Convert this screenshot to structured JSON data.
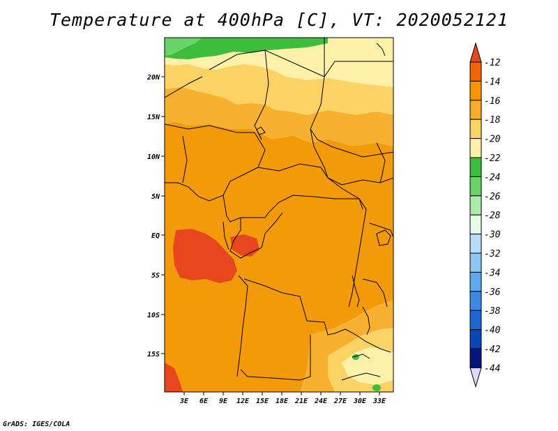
{
  "title": "Temperature at 400hPa [C], VT: 2020052121",
  "footer": "GrADS: IGES/COLA",
  "map": {
    "lat_labels": [
      "20N",
      "15N",
      "10N",
      "5N",
      "EQ",
      "5S",
      "10S",
      "15S"
    ],
    "lon_labels": [
      "3E",
      "6E",
      "9E",
      "12E",
      "15E",
      "18E",
      "21E",
      "24E",
      "27E",
      "30E",
      "33E"
    ]
  },
  "colorbar": {
    "levels": [
      "-12",
      "-14",
      "-16",
      "-18",
      "-20",
      "-22",
      "-24",
      "-26",
      "-28",
      "-30",
      "-32",
      "-34",
      "-36",
      "-38",
      "-40",
      "-42",
      "-44"
    ],
    "colors": [
      "#e8461e",
      "#f26400",
      "#f79400",
      "#f9aa28",
      "#fbd264",
      "#fdf0a8",
      "#3cbe3c",
      "#6ad46a",
      "#aaeaaa",
      "#e8fae8",
      "#b8dcfa",
      "#8cc6f2",
      "#5ea8ec",
      "#3c88e4",
      "#1e68d2",
      "#0a46b4",
      "#04167c",
      "#dcdcf8"
    ]
  },
  "colors": {
    "warmest": "#e85a1e",
    "warm": "#f29a0a",
    "mid": "#f7b030",
    "cool": "#fbd264",
    "coolest": "#fdf0a8",
    "green": "#3cbe3c"
  }
}
